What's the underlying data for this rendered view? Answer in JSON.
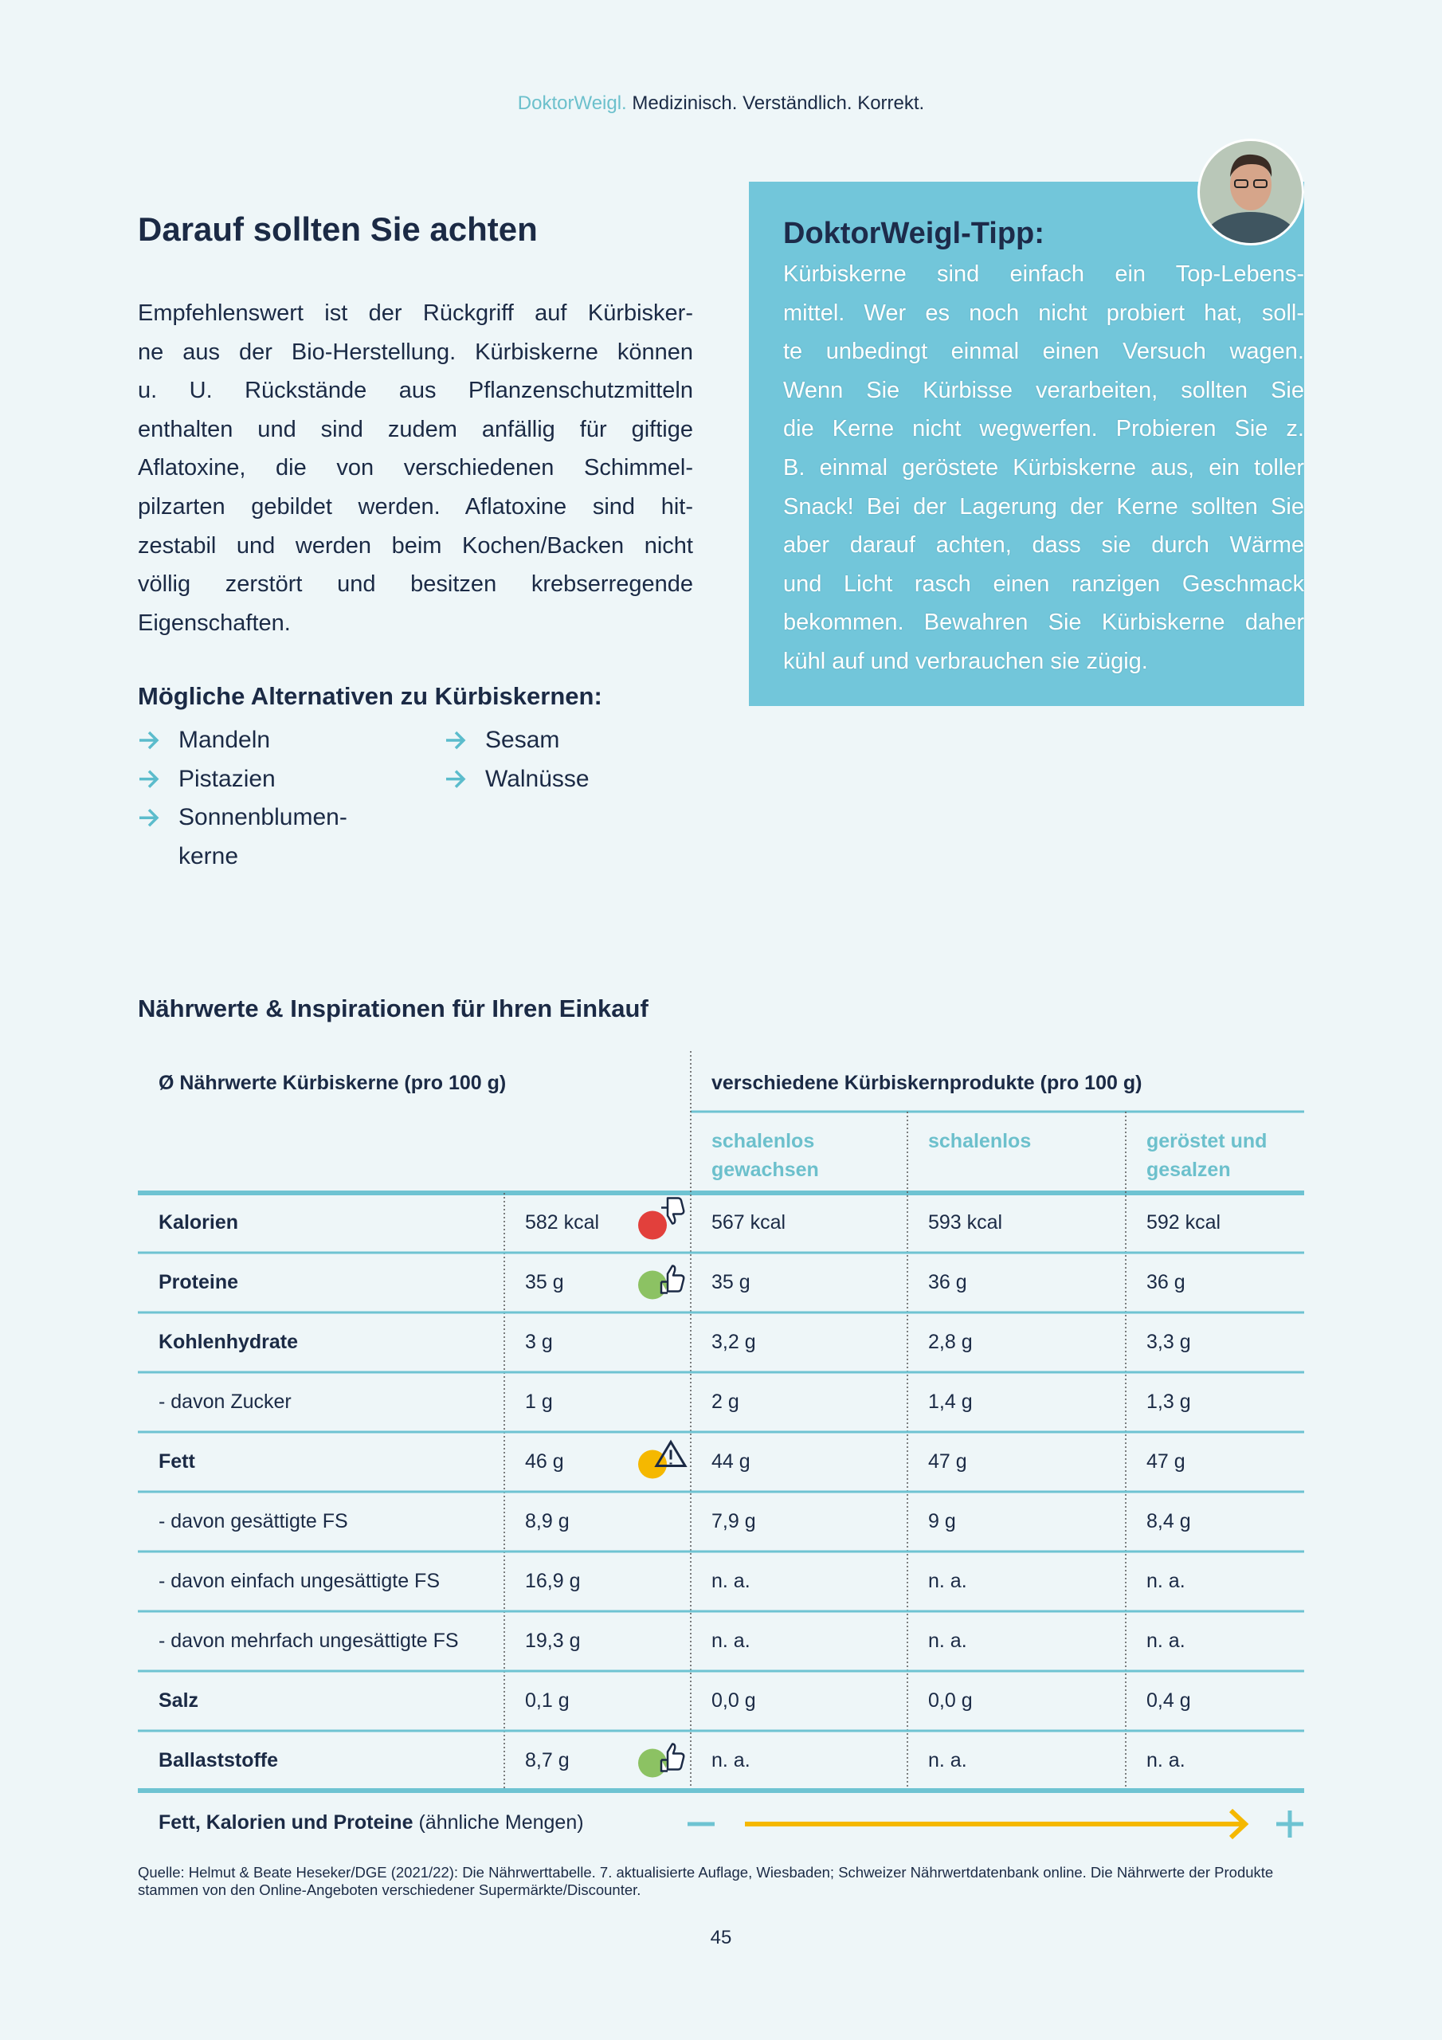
{
  "header": {
    "brand": "DoktorWeigl.",
    "tagline": "Medizinisch. Verständlich. Korrekt."
  },
  "section": {
    "title": "Darauf sollten Sie achten",
    "paragraph_lines": [
      "Empfehlenswert ist der Rückgriff auf Kürbisker-",
      "ne aus der Bio-Herstellung. Kürbiskerne können",
      "u. U. Rückstände aus Pflanzenschutzmitteln",
      "enthalten und sind zudem anfällig für giftige",
      "Aflatoxine, die von verschiedenen Schimmel-",
      "pilzarten gebildet werden. Aflatoxine sind hit-",
      "zestabil und werden beim Kochen/Backen nicht",
      "völlig zerstört und besitzen krebserregende",
      "Eigenschaften."
    ]
  },
  "tip": {
    "title": "DoktorWeigl-Tipp:",
    "lines": [
      "Kürbiskerne sind einfach ein Top-Lebens-",
      "mittel. Wer es noch nicht probiert hat, soll-",
      "te unbedingt einmal einen Versuch wagen.",
      "Wenn Sie Kürbisse verarbeiten, sollten Sie",
      "die Kerne nicht wegwerfen. Probieren Sie z.",
      "B. einmal geröstete Kürbiskerne aus, ein toller",
      "Snack! Bei der Lagerung der Kerne sollten Sie",
      "aber darauf achten, dass sie durch Wärme",
      "und Licht rasch einen ranzigen Geschmack",
      "bekommen. Bewahren Sie Kürbiskerne daher",
      "kühl auf und verbrauchen sie zügig."
    ]
  },
  "alternatives": {
    "title": "Mögliche Alternativen zu Kürbiskernen:",
    "columns": [
      [
        "Mandeln",
        "Pistazien",
        "Sonnenblumen-\nkerne"
      ],
      [
        "Sesam",
        "Walnüsse"
      ]
    ]
  },
  "table": {
    "title": "Nährwerte & Inspirationen für Ihren Einkauf",
    "left_header": "Ø Nährwerte Kürbiskerne (pro 100 g)",
    "right_header": "verschiedene Kürbiskernprodukte (pro 100 g)",
    "subheaders": [
      "schalenlos gewachsen",
      "schalenlos",
      "geröstet und gesalzen"
    ],
    "rows": [
      {
        "cells": [
          "Kalorien",
          "582 kcal",
          "567 kcal",
          "593 kcal",
          "592 kcal"
        ],
        "icon": "thumb-down"
      },
      {
        "cells": [
          "Proteine",
          "35 g",
          "35 g",
          "36 g",
          "36 g"
        ],
        "icon": "thumb-up"
      },
      {
        "cells": [
          "Kohlenhydrate",
          "3 g",
          "3,2 g",
          "2,8 g",
          "3,3 g"
        ]
      },
      {
        "cells": [
          "- davon Zucker",
          "1 g",
          "2 g",
          "1,4 g",
          "1,3 g"
        ]
      },
      {
        "cells": [
          "Fett",
          "46 g",
          "44 g",
          "47 g",
          "47 g"
        ],
        "icon": "warning"
      },
      {
        "cells": [
          "- davon gesättigte FS",
          "8,9 g",
          "7,9 g",
          "9 g",
          "8,4 g"
        ]
      },
      {
        "cells": [
          "- davon einfach ungesättigte FS",
          "16,9 g",
          "n. a.",
          "n. a.",
          "n. a."
        ]
      },
      {
        "cells": [
          "- davon mehrfach ungesättigte FS",
          "19,3 g",
          "n. a.",
          "n. a.",
          "n. a."
        ]
      },
      {
        "cells": [
          "Salz",
          "0,1 g",
          "0,0 g",
          "0,0 g",
          "0,4 g"
        ]
      },
      {
        "cells": [
          "Ballaststoffe",
          "8,7 g",
          "n. a.",
          "n. a.",
          "n. a."
        ],
        "icon": "thumb-up"
      }
    ],
    "footer_bold": "Fett, Kalorien und Proteine",
    "footer_normal": "(ähnliche Mengen)"
  },
  "source": "Quelle: Helmut & Beate Heseker/DGE (2021/22): Die Nährwerttabelle. 7. aktualisierte Auflage, Wiesbaden; Schweizer Nährwertdatenbank online. Die Nährwerte der Produkte stammen von den Online-Angeboten verschiedener Supermärkte/Discounter.",
  "page_number": "45"
}
